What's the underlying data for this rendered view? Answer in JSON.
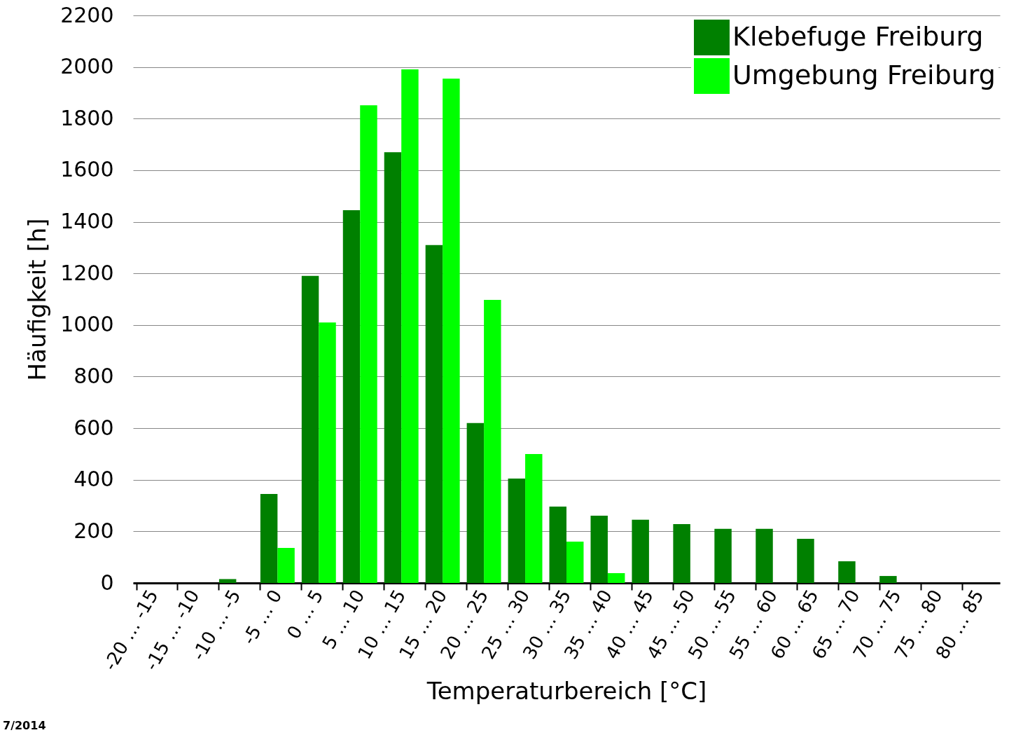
{
  "chart_data": {
    "type": "bar",
    "xlabel": "Temperaturbereich [°C]",
    "ylabel": "Häufigkeit [h]",
    "categories": [
      "-20 … -15",
      "-15 … -10",
      "-10 … -5",
      "-5 … 0",
      "0 … 5",
      "5 … 10",
      "10 … 15",
      "15 … 20",
      "20 … 25",
      "25 … 30",
      "30 … 35",
      "35 … 40",
      "40 … 45",
      "45 … 50",
      "50 … 55",
      "55 … 60",
      "60 … 65",
      "65 … 70",
      "70 … 75",
      "75 … 80",
      "80 … 85"
    ],
    "series": [
      {
        "name": "Klebefuge Freiburg",
        "color": "#008000",
        "values": [
          0,
          0,
          15,
          345,
          1190,
          1445,
          1670,
          1310,
          620,
          405,
          296,
          261,
          245,
          228,
          210,
          210,
          171,
          84,
          27,
          0,
          0
        ]
      },
      {
        "name": "Umgebung Freiburg",
        "color": "#00ff00",
        "values": [
          0,
          0,
          0,
          136,
          1010,
          1852,
          1991,
          1955,
          1097,
          500,
          160,
          38,
          0,
          0,
          0,
          0,
          0,
          0,
          0,
          0,
          0
        ]
      }
    ],
    "ylim": [
      0,
      2200
    ],
    "yticks": [
      0,
      200,
      400,
      600,
      800,
      1000,
      1200,
      1400,
      1600,
      1800,
      2000,
      2200
    ],
    "grid": "y",
    "legend": "top right",
    "annotations": [
      "7/2014"
    ]
  }
}
